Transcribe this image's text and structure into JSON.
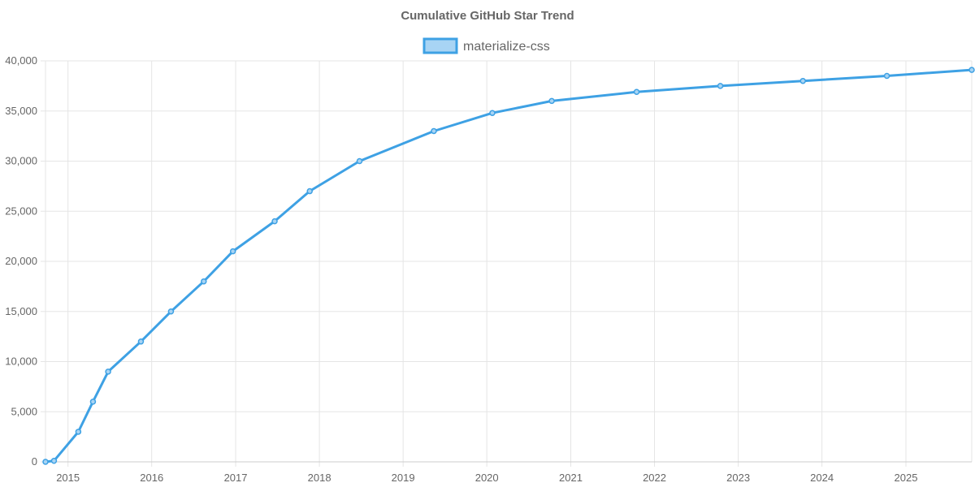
{
  "chart_data": {
    "type": "line",
    "title": "Cumulative GitHub Star Trend",
    "xlabel": "",
    "ylabel": "",
    "ylim": [
      0,
      40000
    ],
    "yticks": [
      0,
      5000,
      10000,
      15000,
      20000,
      25000,
      30000,
      35000,
      40000
    ],
    "ytick_labels": [
      "0",
      "5,000",
      "10,000",
      "15,000",
      "20,000",
      "25,000",
      "30,000",
      "35,000",
      "40,000"
    ],
    "xlim": [
      "2014-09-25",
      "2025-10-15"
    ],
    "xticks": [
      "2015-01-01",
      "2016-01-01",
      "2017-01-01",
      "2018-01-01",
      "2019-01-01",
      "2020-01-01",
      "2021-01-01",
      "2022-01-01",
      "2023-01-01",
      "2024-01-01",
      "2025-01-01"
    ],
    "xtick_labels": [
      "2015",
      "2016",
      "2017",
      "2018",
      "2019",
      "2020",
      "2021",
      "2022",
      "2023",
      "2024",
      "2025"
    ],
    "grid": true,
    "legend_position": "top",
    "series": [
      {
        "name": "materialize-css",
        "color": "#3ea1e4",
        "fill_color": "#a8d4f4",
        "points": [
          {
            "x": "2014-09-25",
            "y": 0
          },
          {
            "x": "2014-11-01",
            "y": 100
          },
          {
            "x": "2015-02-15",
            "y": 3000
          },
          {
            "x": "2015-04-20",
            "y": 6000
          },
          {
            "x": "2015-06-25",
            "y": 9000
          },
          {
            "x": "2015-11-15",
            "y": 12000
          },
          {
            "x": "2016-03-25",
            "y": 15000
          },
          {
            "x": "2016-08-15",
            "y": 18000
          },
          {
            "x": "2016-12-20",
            "y": 21000
          },
          {
            "x": "2017-06-20",
            "y": 24000
          },
          {
            "x": "2017-11-20",
            "y": 27000
          },
          {
            "x": "2018-06-25",
            "y": 30000
          },
          {
            "x": "2019-05-15",
            "y": 33000
          },
          {
            "x": "2020-01-25",
            "y": 34800
          },
          {
            "x": "2020-10-10",
            "y": 36000
          },
          {
            "x": "2021-10-15",
            "y": 36900
          },
          {
            "x": "2022-10-15",
            "y": 37500
          },
          {
            "x": "2023-10-10",
            "y": 38000
          },
          {
            "x": "2024-10-10",
            "y": 38500
          },
          {
            "x": "2025-10-15",
            "y": 39100
          }
        ]
      }
    ]
  }
}
